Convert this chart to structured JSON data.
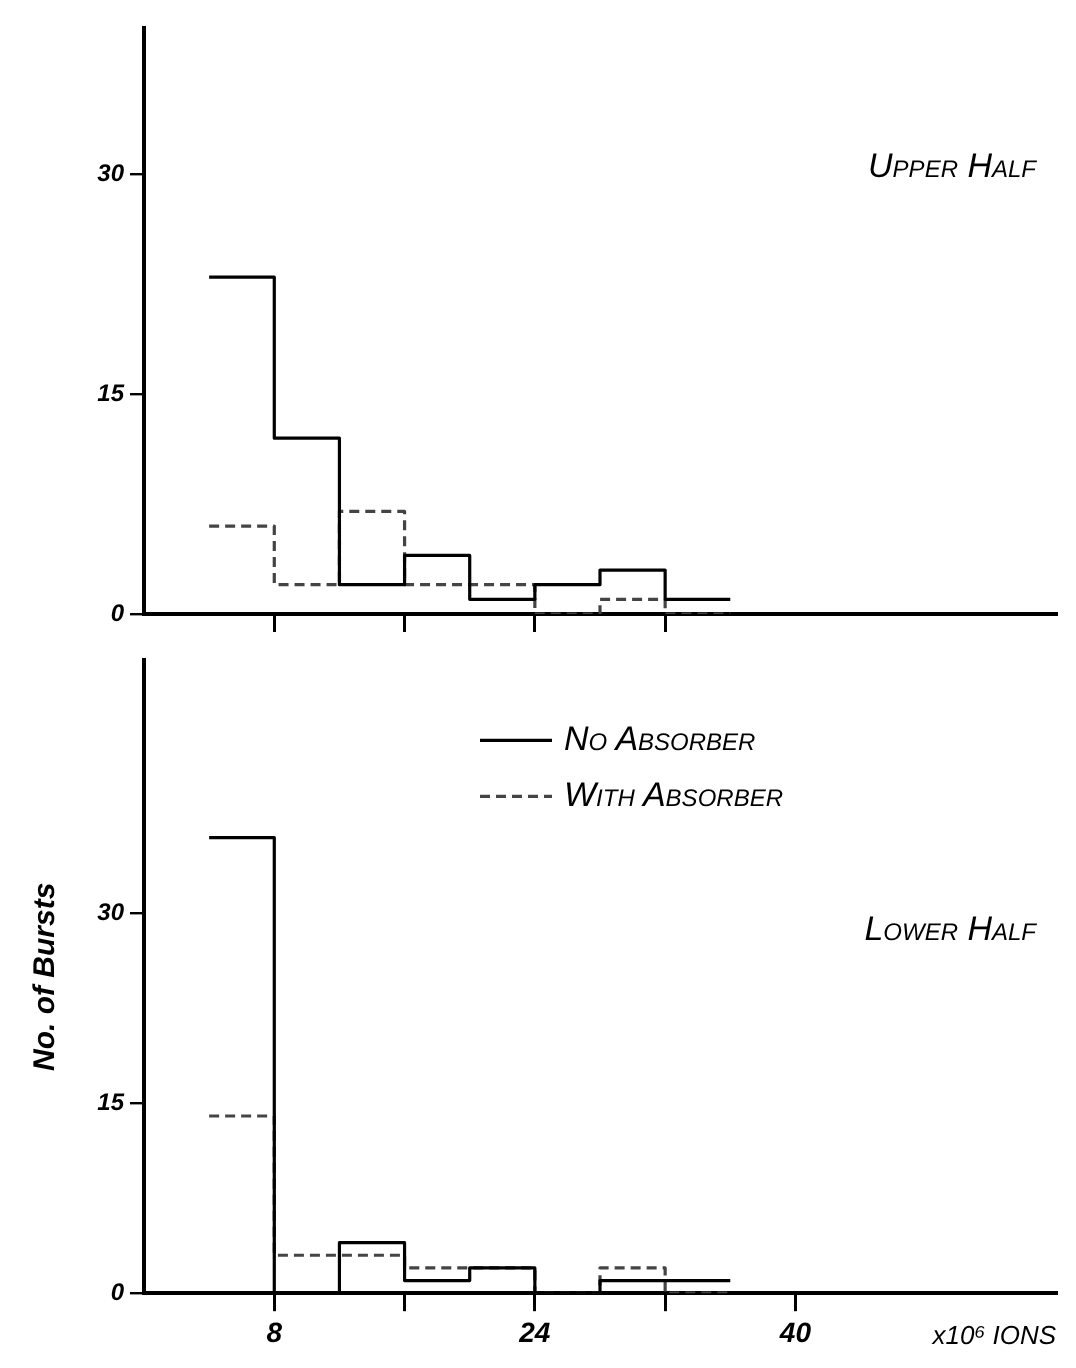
{
  "chart_data": [
    {
      "type": "histogram",
      "bins": [
        4,
        8,
        12,
        16,
        20,
        24,
        28,
        32,
        36
      ],
      "xlim": [
        0,
        56
      ],
      "ylim": [
        0,
        40
      ],
      "yticks": [
        0,
        15,
        30
      ],
      "xticks": [
        {
          "value": 8,
          "label": null
        },
        {
          "value": 16,
          "label": null
        },
        {
          "value": 24,
          "label": null
        },
        {
          "value": 32,
          "label": null
        }
      ],
      "tick_labels": "y",
      "grid": false,
      "legend": false,
      "annotations": [
        "Upper Half"
      ],
      "series": [
        {
          "color": "#000000",
          "line_style": "solid",
          "values": [
            23,
            12,
            2,
            4,
            1,
            2,
            3,
            1
          ]
        },
        {
          "color": "#444444",
          "line_style": "dashed",
          "values": [
            6,
            2,
            7,
            2,
            2,
            0,
            1,
            0
          ]
        }
      ]
    },
    {
      "type": "histogram",
      "bins": [
        4,
        8,
        12,
        16,
        20,
        24,
        28,
        32,
        36
      ],
      "xlim": [
        0,
        56
      ],
      "ylim": [
        0,
        50
      ],
      "yticks": [
        0,
        15,
        30
      ],
      "xticks": [
        8,
        {
          "value": 16,
          "label": null
        },
        24,
        {
          "value": 32,
          "label": null
        },
        40
      ],
      "grid": false,
      "legend": "top",
      "xlabel": "x10⁶ IONS",
      "ylabel": "No. of Bursts",
      "annotations": [
        "Lower Half"
      ],
      "series": [
        {
          "name": "No Absorber",
          "color": "#000000",
          "line_style": "solid",
          "values": [
            36,
            0,
            4,
            1,
            2,
            0,
            1,
            1
          ]
        },
        {
          "name": "With Absorber",
          "color": "#444444",
          "line_style": "dashed",
          "values": [
            14,
            3,
            3,
            2,
            2,
            0,
            2,
            0
          ]
        }
      ]
    }
  ]
}
